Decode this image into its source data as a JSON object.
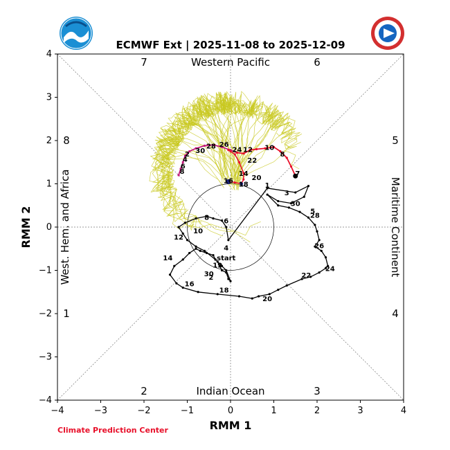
{
  "chart_data": {
    "type": "line",
    "title": "ECMWF Ext | 2025-11-08 to 2025-12-09",
    "xlabel": "RMM 1",
    "ylabel": "RMM 2",
    "xlim": [
      -4,
      4
    ],
    "ylim": [
      -4,
      4
    ],
    "x_ticks": [
      "−4",
      "−3",
      "−2",
      "−1",
      "0",
      "1",
      "2",
      "3",
      "4"
    ],
    "y_ticks": [
      "−4",
      "−3",
      "−2",
      "−1",
      "0",
      "1",
      "2",
      "3",
      "4"
    ],
    "unit_circle_radius": 1,
    "region_labels": {
      "top": "Western Pacific",
      "bottom": "Indian Ocean",
      "left": "West. Hem. and Africa",
      "right": "Maritime Continent"
    },
    "phase_labels": [
      "1",
      "2",
      "3",
      "4",
      "5",
      "6",
      "7",
      "8"
    ],
    "credit": "Climate Prediction Center",
    "colors": {
      "observed": "#000000",
      "ensemble": "#c8c81e",
      "forecast_mean_1": "#e8102a",
      "forecast_mean_2": "#c2187a",
      "forecast_mean_3": "#1a237e",
      "credit": "#e8102a",
      "noaa_blue": "#1b8fd4",
      "nws_red": "#d32f2f"
    },
    "series": [
      {
        "name": "observed",
        "x": [
          0.85,
          1.5,
          1.8,
          1.7,
          1.4,
          1.1,
          0.85,
          1.1,
          1.35,
          1.6,
          1.8,
          1.95,
          2.0,
          2.05,
          1.95,
          2.1,
          2.2,
          2.25,
          2.2,
          2.05,
          1.85,
          1.65,
          1.3,
          1.1,
          0.9,
          0.65,
          0.5,
          0.2,
          -0.3,
          -0.75,
          -1.1,
          -1.25,
          -1.4,
          -1.3,
          -1.1,
          -0.95,
          -0.8,
          -0.7,
          -0.55,
          -0.4,
          -0.35,
          -0.3,
          -0.25,
          -0.2,
          -0.1,
          -0.05,
          0.0,
          -0.1,
          -0.2,
          -0.35,
          -0.6,
          -0.8,
          -1.0,
          -1.1,
          -1.2,
          -1.05,
          -0.8,
          -0.55,
          -0.4,
          -0.2,
          -0.1,
          -0.05,
          0.85
        ],
        "y": [
          0.9,
          0.8,
          0.95,
          0.7,
          0.55,
          0.6,
          0.75,
          0.5,
          0.45,
          0.35,
          0.22,
          0.05,
          -0.1,
          -0.3,
          -0.45,
          -0.55,
          -0.7,
          -0.9,
          -0.95,
          -1.05,
          -1.15,
          -1.2,
          -1.35,
          -1.45,
          -1.55,
          -1.6,
          -1.65,
          -1.6,
          -1.55,
          -1.5,
          -1.4,
          -1.3,
          -1.1,
          -0.9,
          -0.75,
          -0.6,
          -0.5,
          -0.55,
          -0.6,
          -0.65,
          -0.75,
          -0.8,
          -0.9,
          -1.0,
          -1.05,
          -1.2,
          -1.25,
          -1.0,
          -0.9,
          -0.75,
          -0.55,
          -0.45,
          -0.3,
          -0.15,
          0.0,
          0.1,
          0.2,
          0.25,
          0.2,
          0.15,
          0.0,
          -0.3,
          0.9
        ]
      },
      {
        "name": "forecast-mean",
        "x": [
          -1.2,
          -1.15,
          -1.1,
          -1.05,
          -0.95,
          -0.8,
          -0.6,
          -0.4,
          -0.2,
          0.0,
          0.15,
          0.3,
          0.45,
          0.6,
          0.8,
          1.0,
          1.15,
          1.3,
          1.4,
          1.5
        ],
        "y": [
          1.2,
          1.35,
          1.5,
          1.65,
          1.75,
          1.82,
          1.88,
          1.9,
          1.85,
          1.78,
          1.72,
          1.7,
          1.78,
          1.8,
          1.82,
          1.85,
          1.75,
          1.6,
          1.4,
          1.18
        ]
      },
      {
        "name": "forecast-mean-recent",
        "x": [
          -0.05,
          0.1,
          0.25,
          0.3,
          0.3,
          0.2,
          0.1,
          0.0,
          -0.05
        ],
        "y": [
          1.05,
          1.03,
          1.0,
          1.1,
          1.25,
          1.5,
          1.68,
          1.75,
          1.78
        ]
      }
    ],
    "day_labels": [
      {
        "text": "start",
        "x": -0.1,
        "y": -0.7
      },
      {
        "text": "1",
        "x": 0.85,
        "y": 0.98
      },
      {
        "text": "3",
        "x": 1.3,
        "y": 0.8
      },
      {
        "text": "5",
        "x": 1.9,
        "y": 0.38
      },
      {
        "text": "7",
        "x": 1.55,
        "y": 1.25
      },
      {
        "text": "8",
        "x": 1.2,
        "y": 1.7
      },
      {
        "text": "10",
        "x": 0.9,
        "y": 1.85
      },
      {
        "text": "12",
        "x": 0.4,
        "y": 1.8
      },
      {
        "text": "14",
        "x": 0.3,
        "y": 1.25
      },
      {
        "text": "16",
        "x": -0.05,
        "y": 1.08
      },
      {
        "text": "18",
        "x": 0.3,
        "y": 1.0
      },
      {
        "text": "20",
        "x": 0.6,
        "y": 1.15
      },
      {
        "text": "22",
        "x": 0.5,
        "y": 1.55
      },
      {
        "text": "24",
        "x": 0.15,
        "y": 1.8
      },
      {
        "text": "26",
        "x": -0.15,
        "y": 1.92
      },
      {
        "text": "28",
        "x": -0.45,
        "y": 1.88
      },
      {
        "text": "30",
        "x": -0.7,
        "y": 1.78
      },
      {
        "text": "2",
        "x": -1.0,
        "y": 1.7
      },
      {
        "text": "4",
        "x": -1.05,
        "y": 1.58
      },
      {
        "text": "6",
        "x": -1.1,
        "y": 1.42
      },
      {
        "text": "8",
        "x": -1.12,
        "y": 1.3
      },
      {
        "text": "30",
        "x": 1.5,
        "y": 0.55
      },
      {
        "text": "28",
        "x": 1.95,
        "y": 0.28
      },
      {
        "text": "26",
        "x": 2.05,
        "y": -0.42
      },
      {
        "text": "24",
        "x": 2.3,
        "y": -0.95
      },
      {
        "text": "22",
        "x": 1.75,
        "y": -1.1
      },
      {
        "text": "20",
        "x": 0.85,
        "y": -1.65
      },
      {
        "text": "18",
        "x": -0.15,
        "y": -1.45
      },
      {
        "text": "16",
        "x": -0.95,
        "y": -1.3
      },
      {
        "text": "14",
        "x": -1.45,
        "y": -0.7
      },
      {
        "text": "12",
        "x": -1.2,
        "y": -0.22
      },
      {
        "text": "10",
        "x": -0.75,
        "y": -0.08
      },
      {
        "text": "8",
        "x": -0.55,
        "y": 0.23
      },
      {
        "text": "6",
        "x": -0.1,
        "y": 0.15
      },
      {
        "text": "4",
        "x": -0.1,
        "y": -0.47
      },
      {
        "text": "19",
        "x": -0.3,
        "y": -0.87
      },
      {
        "text": "30",
        "x": -0.5,
        "y": -1.07
      },
      {
        "text": "2",
        "x": -0.45,
        "y": -1.15
      }
    ]
  }
}
